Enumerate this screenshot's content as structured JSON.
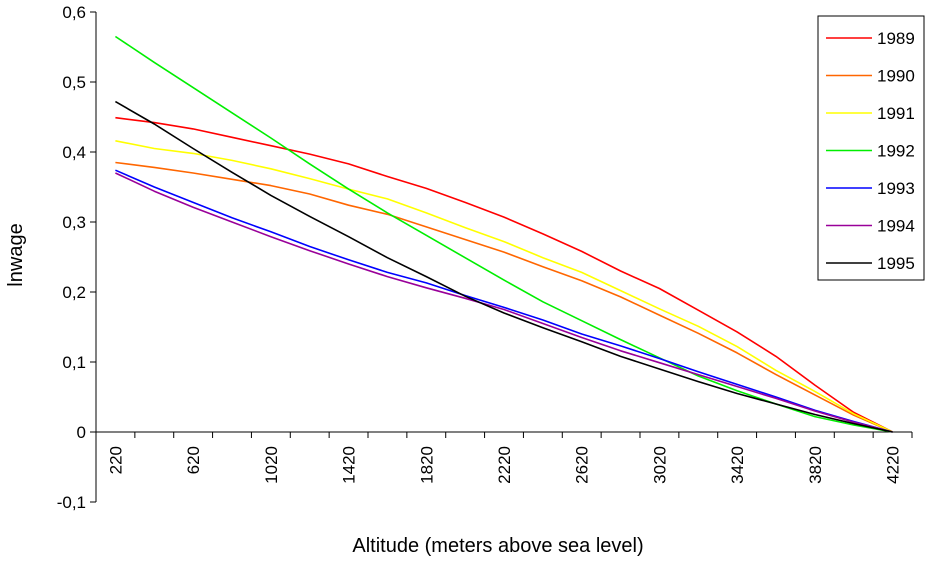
{
  "chart_data": {
    "type": "line",
    "title": "",
    "xlabel": "Altitude (meters above sea level)",
    "ylabel": "lnwage",
    "x": [
      220,
      420,
      620,
      820,
      1020,
      1220,
      1420,
      1620,
      1820,
      2020,
      2220,
      2420,
      2620,
      2820,
      3020,
      3220,
      3420,
      3620,
      3820,
      4020,
      4220
    ],
    "x_tick_labels": [
      "220",
      "620",
      "1020",
      "1420",
      "1820",
      "2220",
      "2620",
      "3020",
      "3420",
      "3820",
      "4220"
    ],
    "ylim": [
      -0.1,
      0.6
    ],
    "y_tick_labels": [
      "-0,1",
      "0",
      "0,1",
      "0,2",
      "0,3",
      "0,4",
      "0,5",
      "0,6"
    ],
    "y_ticks": [
      -0.1,
      0,
      0.1,
      0.2,
      0.3,
      0.4,
      0.5,
      0.6
    ],
    "grid": false,
    "legend_position": "top-right",
    "series": [
      {
        "name": "1989",
        "color": "#ff0000",
        "values": [
          0.449,
          0.442,
          0.433,
          0.421,
          0.409,
          0.397,
          0.383,
          0.365,
          0.348,
          0.328,
          0.307,
          0.283,
          0.258,
          0.23,
          0.205,
          0.174,
          0.143,
          0.108,
          0.067,
          0.028,
          0.0
        ]
      },
      {
        "name": "1990",
        "color": "#ff6600",
        "values": [
          0.385,
          0.378,
          0.37,
          0.361,
          0.352,
          0.34,
          0.324,
          0.311,
          0.293,
          0.275,
          0.257,
          0.236,
          0.216,
          0.193,
          0.167,
          0.141,
          0.113,
          0.082,
          0.053,
          0.024,
          0.0
        ]
      },
      {
        "name": "1991",
        "color": "#ffff00",
        "values": [
          0.416,
          0.405,
          0.398,
          0.388,
          0.376,
          0.362,
          0.347,
          0.333,
          0.313,
          0.292,
          0.272,
          0.249,
          0.228,
          0.202,
          0.176,
          0.151,
          0.122,
          0.088,
          0.058,
          0.026,
          0.0
        ]
      },
      {
        "name": "1992",
        "color": "#00ee00",
        "values": [
          0.565,
          0.528,
          0.492,
          0.456,
          0.42,
          0.383,
          0.347,
          0.313,
          0.281,
          0.249,
          0.217,
          0.186,
          0.159,
          0.132,
          0.106,
          0.08,
          0.059,
          0.04,
          0.022,
          0.01,
          0.0
        ]
      },
      {
        "name": "1993",
        "color": "#0000ff",
        "values": [
          0.374,
          0.35,
          0.328,
          0.306,
          0.286,
          0.265,
          0.246,
          0.228,
          0.213,
          0.195,
          0.178,
          0.16,
          0.14,
          0.123,
          0.105,
          0.086,
          0.068,
          0.05,
          0.031,
          0.015,
          0.0
        ]
      },
      {
        "name": "1994",
        "color": "#990099",
        "values": [
          0.37,
          0.344,
          0.321,
          0.3,
          0.279,
          0.259,
          0.24,
          0.222,
          0.206,
          0.191,
          0.175,
          0.155,
          0.135,
          0.116,
          0.099,
          0.082,
          0.065,
          0.048,
          0.03,
          0.014,
          0.0
        ]
      },
      {
        "name": "1995",
        "color": "#000000",
        "values": [
          0.472,
          0.44,
          0.405,
          0.371,
          0.338,
          0.308,
          0.279,
          0.249,
          0.222,
          0.194,
          0.17,
          0.149,
          0.129,
          0.108,
          0.09,
          0.072,
          0.055,
          0.04,
          0.025,
          0.012,
          0.0
        ]
      }
    ]
  }
}
